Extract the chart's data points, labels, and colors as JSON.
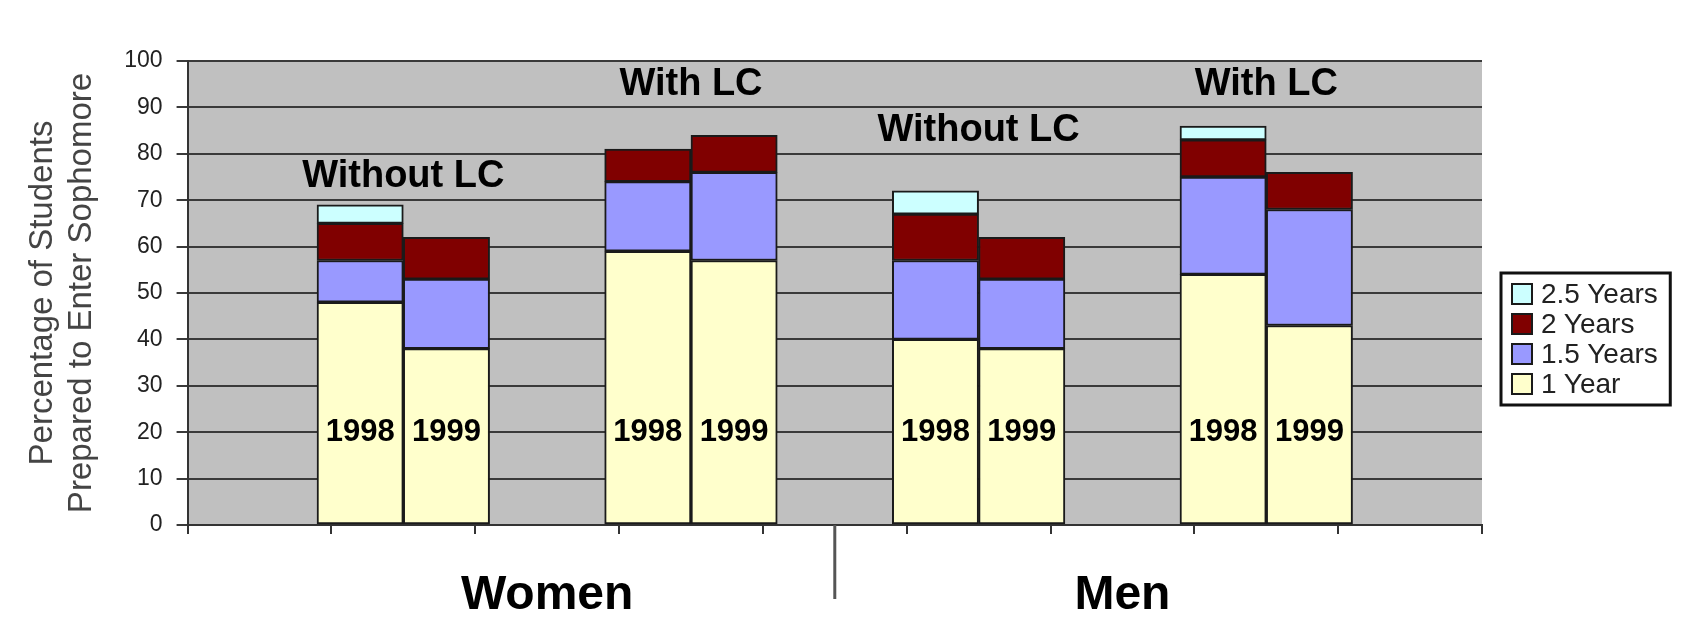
{
  "chart_data": {
    "type": "bar",
    "categories": [
      "1998",
      "1999",
      "1998",
      "1999",
      "1998",
      "1999",
      "1998",
      "1999"
    ],
    "series": [
      {
        "name": "1 Year",
        "color": "#ffffcc",
        "values": [
          48,
          38,
          59,
          57,
          40,
          38,
          54,
          43
        ]
      },
      {
        "name": "1.5 Years",
        "color": "#9999ff",
        "values": [
          9,
          15,
          15,
          19,
          17,
          15,
          21,
          25
        ]
      },
      {
        "name": "2 Years",
        "color": "#800000",
        "values": [
          8,
          9,
          7,
          8,
          10,
          9,
          8,
          8
        ]
      },
      {
        "name": "2.5 Years",
        "color": "#ccffff",
        "values": [
          4,
          null,
          null,
          null,
          5,
          null,
          3,
          null
        ]
      }
    ],
    "stacked": true,
    "ylabel": "Percentage of Students Prepared to Enter Sophomore",
    "ylim": [
      0,
      100
    ],
    "yticks": [
      0,
      10,
      20,
      30,
      40,
      50,
      60,
      70,
      80,
      90,
      100
    ],
    "grid": "y",
    "legend": "right",
    "annotations": [
      "Without LC",
      "With LC",
      "Without LC",
      "With LC",
      "Women",
      "Men"
    ]
  }
}
